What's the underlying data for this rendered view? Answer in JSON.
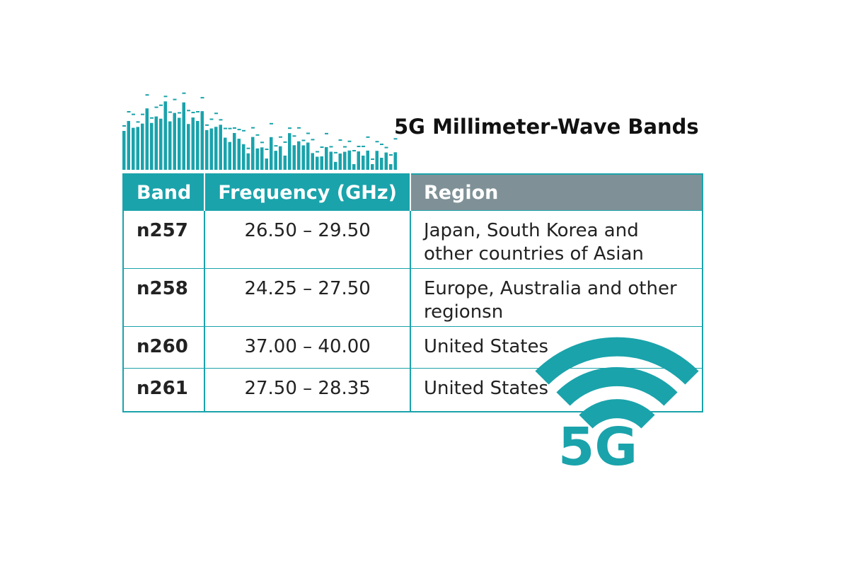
{
  "title": "5G Millimeter-Wave Bands",
  "table": {
    "header": [
      "Band",
      "Frequency (GHz)",
      "Region"
    ],
    "rows": [
      [
        "n257",
        "26.50 – 29.50",
        "Japan, South Korea and other countries of Asian"
      ],
      [
        "n258",
        "24.25 – 27.50",
        "Europe, Australia and other regionsn"
      ],
      [
        "n260",
        "37.00 – 40.00",
        "United States"
      ],
      [
        "n261",
        "27.50 – 28.35",
        "United States"
      ]
    ]
  },
  "logo": "5G"
}
